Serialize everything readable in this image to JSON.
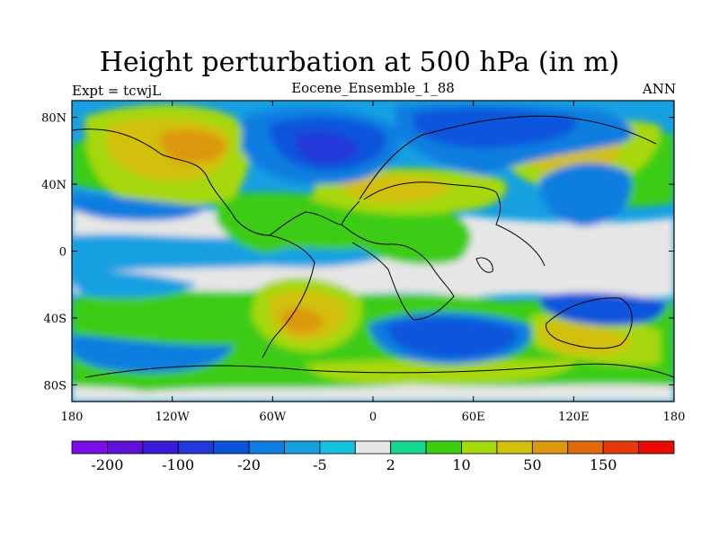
{
  "title": "Height perturbation at 500 hPa (in m)",
  "left_string": "Expt = tcwjL",
  "center_string": "Eocene_Ensemble_1_88",
  "right_string": "ANN",
  "lon_ticks": [
    "180",
    "120W",
    "60W",
    "0",
    "60E",
    "120E",
    "180"
  ],
  "lat_ticks": [
    "80N",
    "40N",
    "0",
    "40S",
    "80S"
  ],
  "colorbar": {
    "colors": [
      "#7a0ee6",
      "#6210d6",
      "#3c1ad8",
      "#2238d8",
      "#0a54dc",
      "#0f7ee0",
      "#16a0e2",
      "#18c0e0",
      "#e6e6e6",
      "#17d890",
      "#3ccc12",
      "#a6d80e",
      "#d2c00e",
      "#dc9810",
      "#e06a0c",
      "#e23a0a",
      "#e60a00"
    ],
    "labels": [
      "-200",
      "-100",
      "-20",
      "-5",
      "2",
      "10",
      "50",
      "150"
    ]
  }
}
